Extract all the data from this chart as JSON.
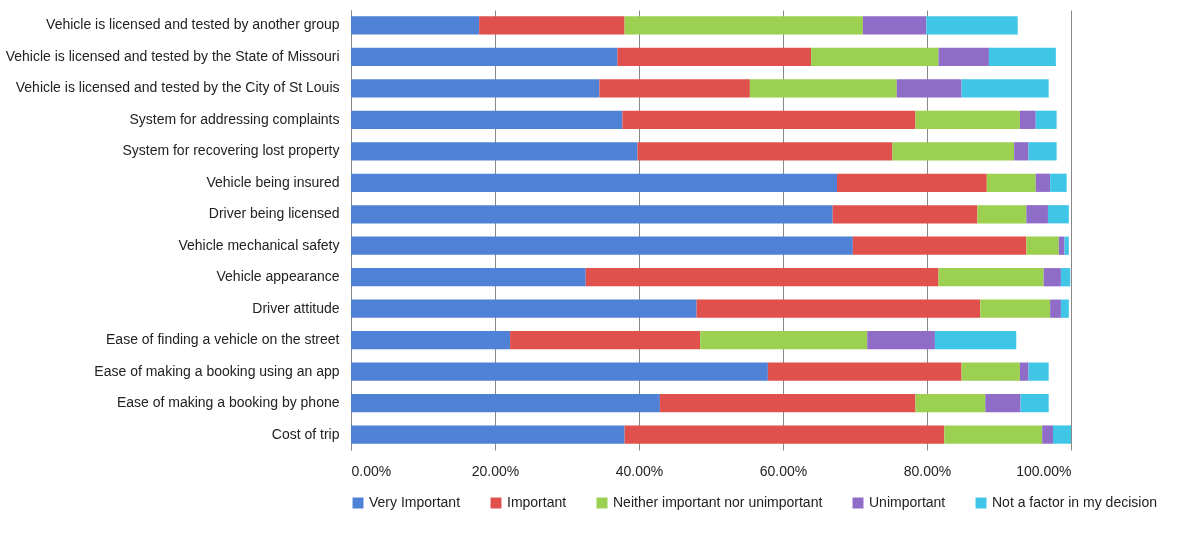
{
  "chart_data": {
    "type": "bar",
    "orientation": "horizontal",
    "stacked": true,
    "categories": [
      "Vehicle is licensed and tested by another group",
      "Vehicle is licensed and tested by the State of Missouri",
      "Vehicle is licensed and tested by the City of St Louis",
      "System for addressing complaints",
      "System for recovering lost property",
      "Vehicle being insured",
      "Driver being licensed",
      "Vehicle mechanical safety",
      "Vehicle appearance",
      "Driver attitude",
      "Ease of finding a vehicle on the street",
      "Ease of making a booking using an app",
      "Ease of making a booking by phone",
      "Cost of trip"
    ],
    "series": [
      {
        "name": "Very Important",
        "color": "#4f81d6",
        "values": [
          17.8,
          37.0,
          34.5,
          37.7,
          39.8,
          67.5,
          66.9,
          69.7,
          32.6,
          48.0,
          22.1,
          57.9,
          42.9,
          38.0
        ]
      },
      {
        "name": "Important",
        "color": "#e0504d",
        "values": [
          20.2,
          26.9,
          20.9,
          40.7,
          35.4,
          20.8,
          20.1,
          24.1,
          49.0,
          39.4,
          26.4,
          26.9,
          35.5,
          44.4
        ]
      },
      {
        "name": "Neither important nor unimportant",
        "color": "#9bd050",
        "values": [
          33.1,
          17.7,
          20.4,
          14.5,
          16.9,
          6.8,
          6.8,
          4.5,
          14.6,
          9.7,
          23.2,
          8.1,
          9.7,
          13.6
        ]
      },
      {
        "name": "Unimportant",
        "color": "#8e6cc8",
        "values": [
          8.8,
          7.0,
          9.0,
          2.2,
          2.0,
          2.0,
          3.0,
          0.8,
          2.4,
          1.5,
          9.4,
          1.2,
          4.9,
          1.5
        ]
      },
      {
        "name": "Not a factor in my decision",
        "color": "#3fc6e6",
        "values": [
          12.7,
          9.3,
          12.1,
          2.9,
          3.9,
          2.3,
          2.9,
          0.6,
          1.3,
          1.1,
          11.3,
          2.8,
          3.9,
          2.5
        ]
      }
    ],
    "xlim": [
      0,
      100
    ],
    "xticks": [
      {
        "value": 0,
        "label": "0.00%"
      },
      {
        "value": 20,
        "label": "20.00%"
      },
      {
        "value": 40,
        "label": "40.00%"
      },
      {
        "value": 60,
        "label": "60.00%"
      },
      {
        "value": 80,
        "label": "80.00%"
      },
      {
        "value": 100,
        "label": "100.00%"
      }
    ],
    "grid": "x",
    "legend": "bottom"
  }
}
